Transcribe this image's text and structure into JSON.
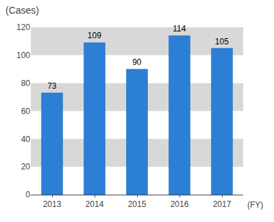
{
  "chart_data": {
    "type": "bar",
    "title": "(Cases)",
    "xlabel": "(FY)",
    "categories": [
      "2013",
      "2014",
      "2015",
      "2016",
      "2017"
    ],
    "values": [
      73,
      109,
      90,
      114,
      105
    ],
    "color": "#2B7FD4",
    "ylim": [
      0,
      120
    ],
    "yticks": [
      0,
      20,
      40,
      60,
      80,
      100,
      120
    ],
    "grid": true,
    "data_labels": true
  }
}
